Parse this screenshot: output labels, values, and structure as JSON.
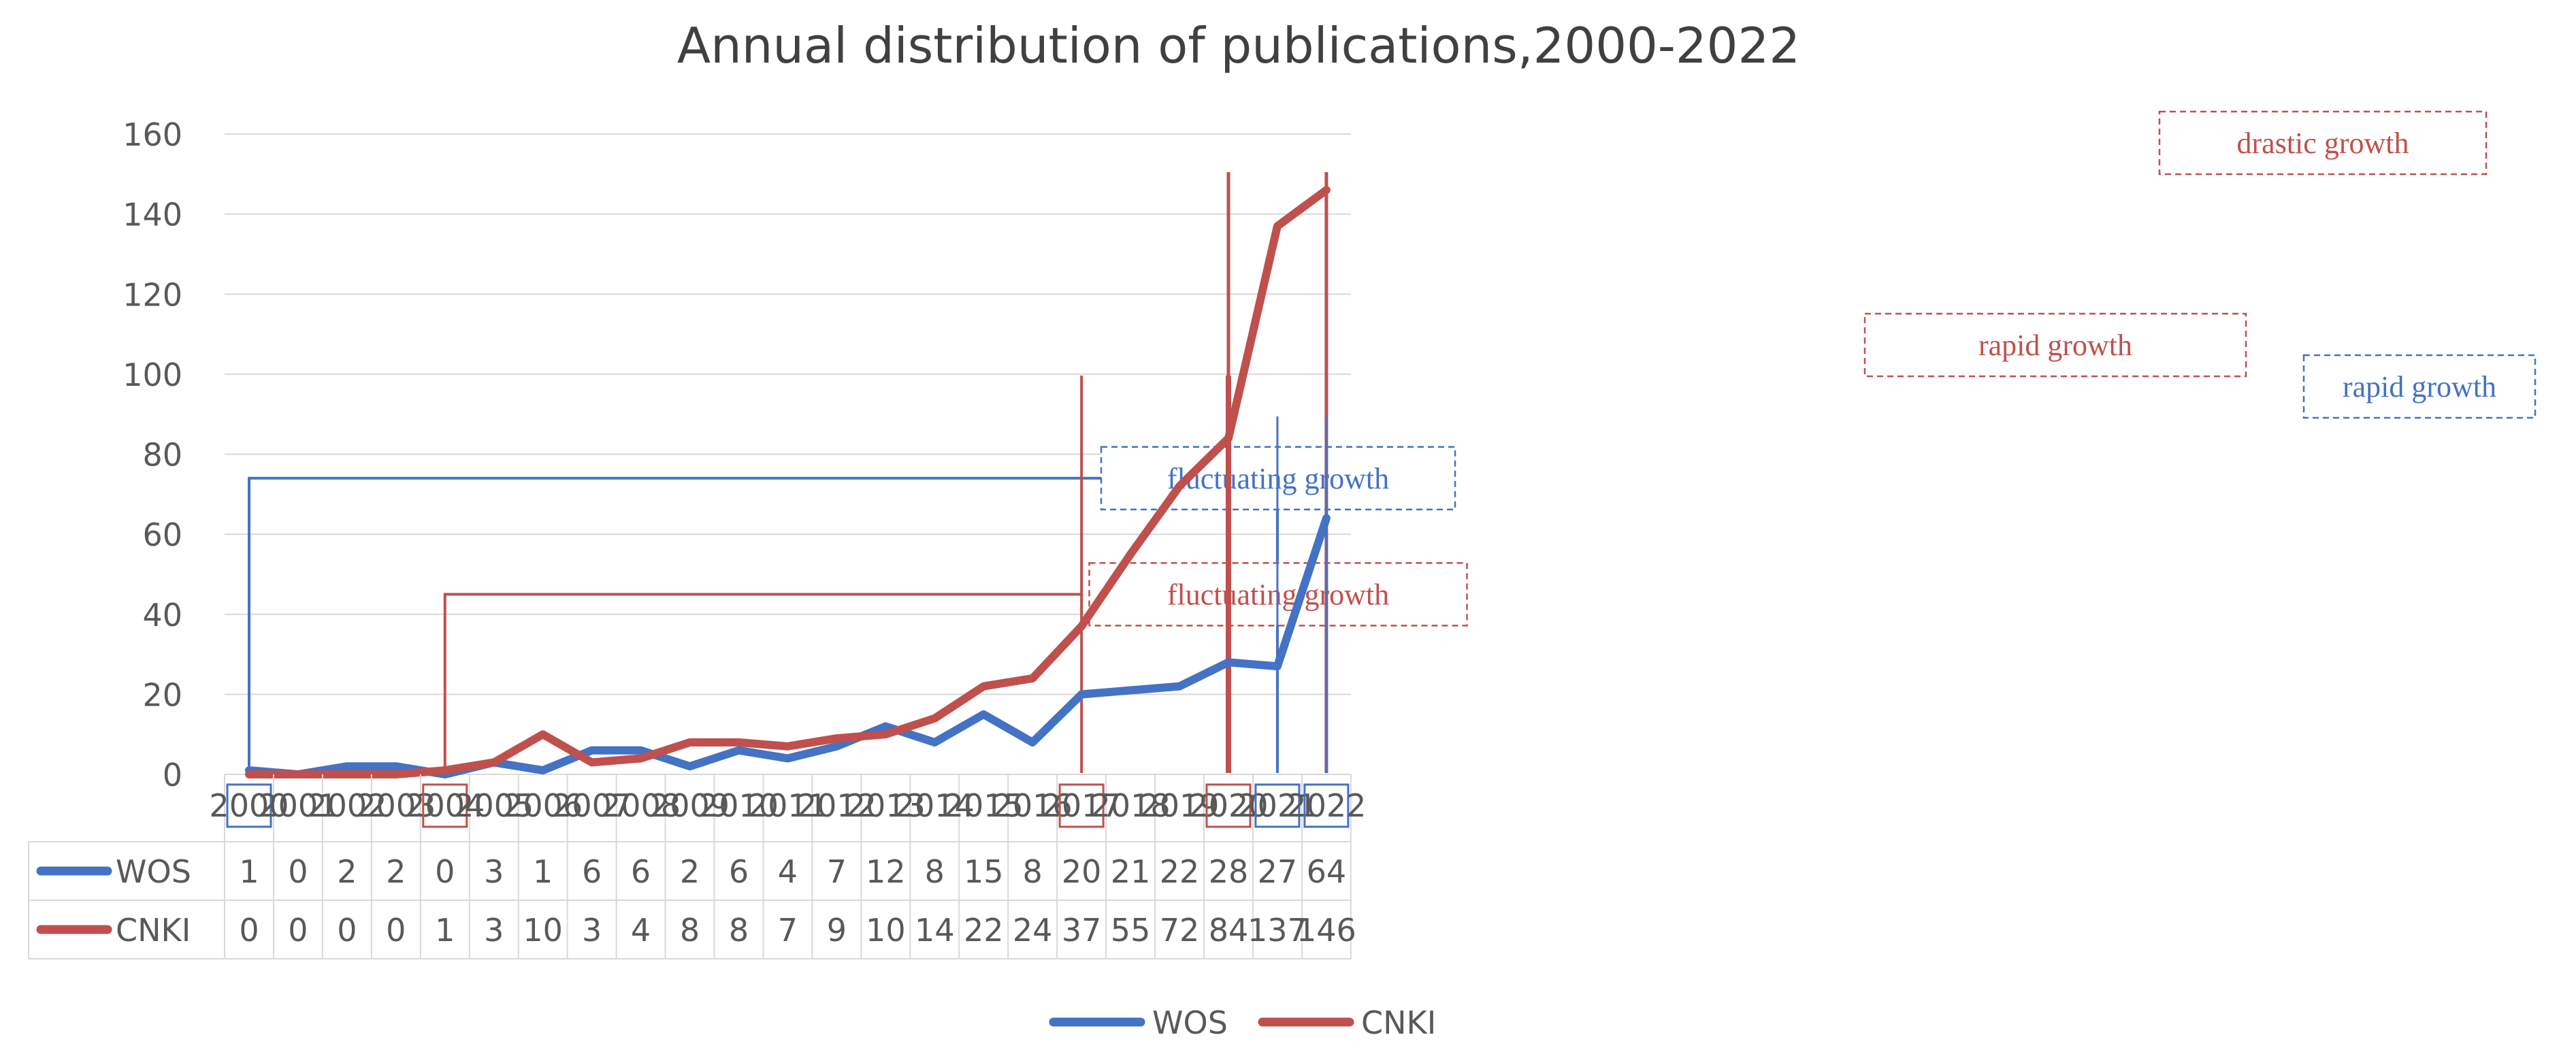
{
  "chart_data": {
    "type": "line",
    "title": "Annual distribution of publications,2000-2022",
    "xlabel": "",
    "ylabel": "",
    "ylim": [
      0,
      160
    ],
    "yticks": [
      "160",
      "140",
      "120",
      "100",
      "80",
      "60",
      "40",
      "20",
      "0"
    ],
    "categories": [
      "2000",
      "2001",
      "2002",
      "2003",
      "2004",
      "2005",
      "2006",
      "2007",
      "2008",
      "2009",
      "2010",
      "2011",
      "2012",
      "2013",
      "2014",
      "2015",
      "2016",
      "2017",
      "2018",
      "2019",
      "2020",
      "2021",
      "2022"
    ],
    "series": [
      {
        "name": "WOS",
        "color": "#4472C4",
        "values": [
          1,
          0,
          2,
          2,
          0,
          3,
          1,
          6,
          6,
          2,
          6,
          4,
          7,
          12,
          8,
          15,
          8,
          20,
          21,
          22,
          28,
          27,
          64
        ]
      },
      {
        "name": "CNKI",
        "color": "#C0504D",
        "values": [
          0,
          0,
          0,
          0,
          1,
          3,
          10,
          3,
          4,
          8,
          8,
          7,
          9,
          10,
          14,
          22,
          24,
          37,
          55,
          72,
          84,
          137,
          146
        ]
      }
    ],
    "legend": {
      "position": "bottom",
      "entries": [
        "WOS",
        "CNKI"
      ]
    },
    "annotations": [
      {
        "text": "fluctuating growth",
        "series": "WOS",
        "from_year": "2000",
        "to_year": "2021",
        "level": 74,
        "color": "#4472C4"
      },
      {
        "text": "rapid growth",
        "series": "WOS",
        "from_year": "2021",
        "to_year": "2022",
        "color": "#4472C4"
      },
      {
        "text": "fluctuating growth",
        "series": "CNKI",
        "from_year": "2004",
        "to_year": "2017",
        "level": 45,
        "color": "#C0504D"
      },
      {
        "text": "rapid growth",
        "series": "CNKI",
        "from_year": "2017",
        "to_year": "2020",
        "color": "#C0504D"
      },
      {
        "text": "drastic growth",
        "series": "CNKI",
        "from_year": "2020",
        "to_year": "2022",
        "color": "#C0504D"
      }
    ],
    "highlighted_years": [
      {
        "year": "2000",
        "color": "#4472C4"
      },
      {
        "year": "2004",
        "color": "#C0504D"
      },
      {
        "year": "2017",
        "color": "#C0504D"
      },
      {
        "year": "2020",
        "color": "#C0504D"
      },
      {
        "year": "2021",
        "color": "#4472C4"
      },
      {
        "year": "2022",
        "color": "#4472C4"
      }
    ],
    "colors": {
      "grid": "#D9D9D9",
      "text": "#595959",
      "title": "#404040"
    }
  }
}
